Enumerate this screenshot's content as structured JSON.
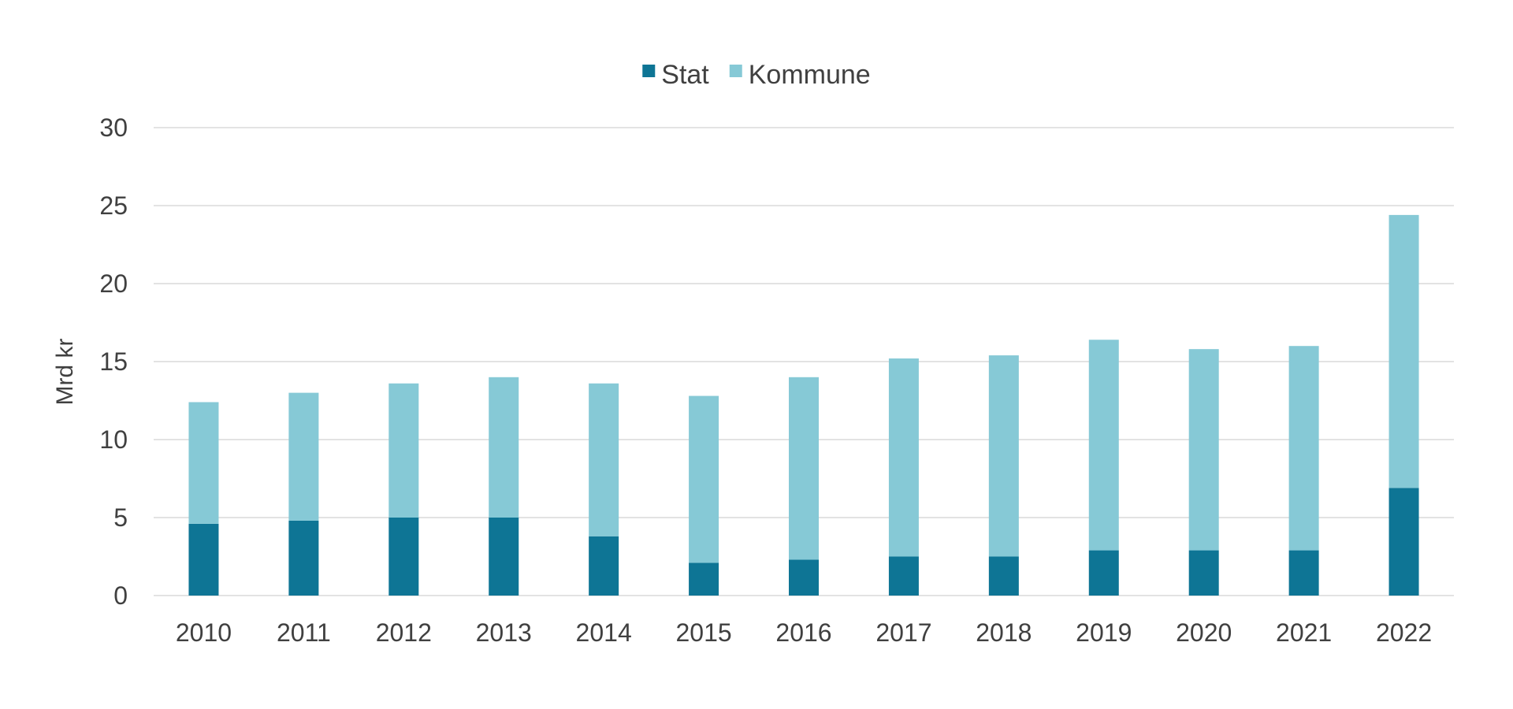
{
  "chart_data": {
    "type": "bar",
    "stacked": true,
    "title": "",
    "xlabel": "",
    "ylabel": "Mrd kr",
    "ylim": [
      0,
      30
    ],
    "yticks": [
      0,
      5,
      10,
      15,
      20,
      25,
      30
    ],
    "grid": true,
    "legend_position": "top-center",
    "categories": [
      "2010",
      "2011",
      "2012",
      "2013",
      "2014",
      "2015",
      "2016",
      "2017",
      "2018",
      "2019",
      "2020",
      "2021",
      "2022"
    ],
    "series": [
      {
        "name": "Stat",
        "color": "#0e7595",
        "values": [
          4.6,
          4.8,
          5.0,
          5.0,
          3.8,
          2.1,
          2.3,
          2.5,
          2.5,
          2.9,
          2.9,
          2.9,
          6.9
        ]
      },
      {
        "name": "Kommune",
        "color": "#86c9d6",
        "values": [
          7.8,
          8.2,
          8.6,
          9.0,
          9.8,
          10.7,
          11.7,
          12.7,
          12.9,
          13.5,
          12.9,
          13.1,
          17.5
        ]
      }
    ]
  }
}
